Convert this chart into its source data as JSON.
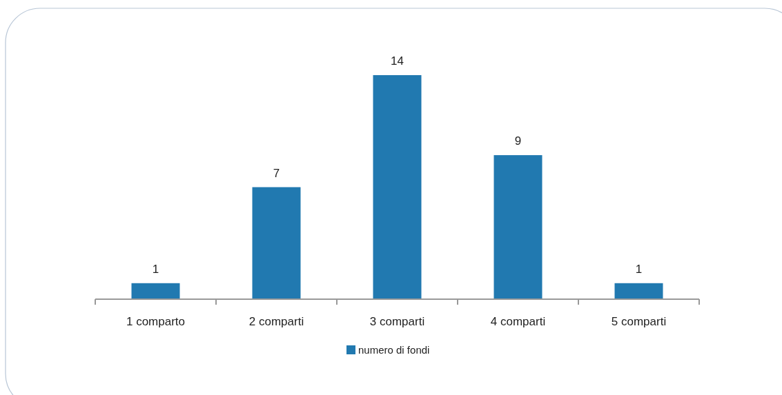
{
  "chart_data": {
    "type": "bar",
    "categories": [
      "1 comparto",
      "2 comparti",
      "3 comparti",
      "4 comparti",
      "5 comparti"
    ],
    "series": [
      {
        "name": "numero di fondi",
        "color": "#2179b0",
        "values": [
          1,
          7,
          14,
          9,
          1
        ]
      }
    ],
    "data_labels": true,
    "legend": "bottom",
    "grid": false
  }
}
